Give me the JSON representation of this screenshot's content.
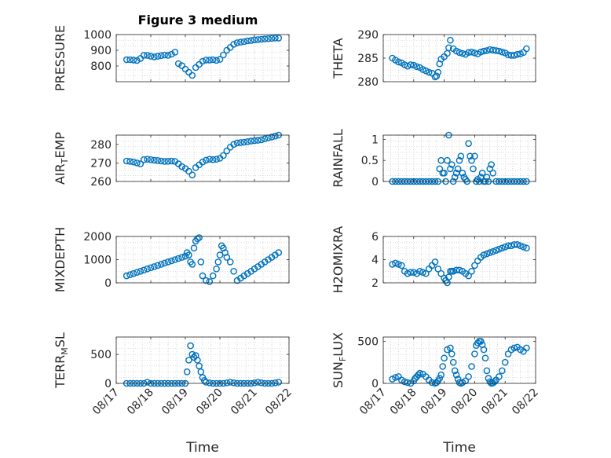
{
  "figure": {
    "title": "Figure 3 medium",
    "marker_color": "#0072BD",
    "xlabel": "Time"
  },
  "chart_data": [
    {
      "type": "scatter",
      "ylabel": "PRESSURE",
      "xlim": [
        0,
        5
      ],
      "ylim": [
        700,
        1000
      ],
      "yticks": [
        800,
        900,
        1000
      ],
      "xticks": [
        "08/17",
        "08/18",
        "08/19",
        "08/20",
        "08/21",
        "08/22"
      ],
      "show_xticklabels": false,
      "grid": true,
      "x": [
        0.3,
        0.4,
        0.5,
        0.6,
        0.7,
        0.8,
        0.9,
        1.0,
        1.1,
        1.2,
        1.3,
        1.4,
        1.5,
        1.6,
        1.7,
        1.8,
        1.9,
        2.0,
        2.1,
        2.2,
        2.3,
        2.4,
        2.5,
        2.6,
        2.7,
        2.8,
        2.9,
        3.0,
        3.1,
        3.2,
        3.3,
        3.4,
        3.5,
        3.6,
        3.7,
        3.8,
        3.9,
        4.0,
        4.1,
        4.2,
        4.3,
        4.4,
        4.5,
        4.6,
        4.7
      ],
      "y": [
        840,
        840,
        838,
        835,
        848,
        868,
        868,
        862,
        858,
        862,
        866,
        870,
        868,
        875,
        888,
        815,
        802,
        780,
        760,
        740,
        790,
        810,
        830,
        838,
        838,
        840,
        836,
        842,
        870,
        900,
        918,
        938,
        948,
        952,
        955,
        960,
        962,
        966,
        968,
        970,
        972,
        974,
        976,
        978,
        978
      ]
    },
    {
      "type": "scatter",
      "ylabel": "THETA",
      "xlim": [
        0,
        5
      ],
      "ylim": [
        280,
        290
      ],
      "yticks": [
        280,
        285,
        290
      ],
      "xticks": [
        "08/17",
        "08/18",
        "08/19",
        "08/20",
        "08/21",
        "08/22"
      ],
      "show_xticklabels": false,
      "grid": true,
      "x": [
        0.3,
        0.4,
        0.5,
        0.6,
        0.7,
        0.8,
        0.9,
        1.0,
        1.1,
        1.2,
        1.3,
        1.4,
        1.5,
        1.6,
        1.7,
        1.75,
        1.8,
        1.85,
        1.9,
        2.0,
        2.1,
        2.15,
        2.2,
        2.3,
        2.4,
        2.5,
        2.6,
        2.7,
        2.8,
        2.9,
        3.0,
        3.1,
        3.2,
        3.3,
        3.4,
        3.5,
        3.6,
        3.7,
        3.8,
        3.9,
        4.0,
        4.1,
        4.2,
        4.3,
        4.4,
        4.5,
        4.6,
        4.7
      ],
      "y": [
        285,
        284.6,
        284.2,
        284.0,
        283.6,
        283.3,
        283.6,
        283.5,
        283.2,
        283.0,
        282.6,
        282.3,
        282.0,
        281.8,
        281.0,
        281.2,
        282.0,
        283.8,
        284.8,
        285.3,
        286.0,
        287.2,
        288.8,
        287.0,
        286.5,
        286.2,
        286.0,
        285.8,
        286.2,
        286.3,
        286.1,
        285.9,
        286.3,
        286.5,
        286.6,
        286.8,
        286.7,
        286.6,
        286.5,
        286.3,
        286.1,
        285.7,
        285.6,
        285.6,
        285.8,
        285.9,
        286.2,
        287.0
      ]
    },
    {
      "type": "scatter",
      "ylabel": "AIR_TEMP",
      "ylabel_display": {
        "main": "AIR",
        "sub": "T",
        "rest": "EMP"
      },
      "xlim": [
        0,
        5
      ],
      "ylim": [
        260,
        285
      ],
      "yticks": [
        260,
        270,
        280
      ],
      "xticks": [
        "08/17",
        "08/18",
        "08/19",
        "08/20",
        "08/21",
        "08/22"
      ],
      "show_xticklabels": false,
      "grid": true,
      "x": [
        0.3,
        0.4,
        0.5,
        0.6,
        0.7,
        0.8,
        0.9,
        1.0,
        1.1,
        1.2,
        1.3,
        1.4,
        1.5,
        1.6,
        1.7,
        1.8,
        1.9,
        2.0,
        2.1,
        2.2,
        2.3,
        2.4,
        2.5,
        2.6,
        2.7,
        2.8,
        2.9,
        3.0,
        3.1,
        3.2,
        3.3,
        3.4,
        3.5,
        3.6,
        3.7,
        3.8,
        3.9,
        4.0,
        4.1,
        4.2,
        4.3,
        4.4,
        4.5,
        4.6,
        4.7
      ],
      "y": [
        271,
        270.8,
        270.5,
        270.0,
        269.5,
        271.8,
        272.0,
        271.8,
        271.5,
        271.3,
        271.0,
        270.8,
        270.9,
        271.0,
        270.8,
        269.5,
        268.0,
        267.0,
        265.5,
        263.5,
        267.5,
        269.0,
        270.5,
        271.5,
        272.0,
        271.8,
        272.0,
        272.5,
        274.0,
        276.5,
        278.5,
        280.0,
        280.8,
        281.0,
        281.2,
        281.5,
        281.8,
        282.0,
        282.2,
        282.5,
        283.0,
        283.5,
        284.0,
        284.5,
        285.0
      ]
    },
    {
      "type": "scatter",
      "ylabel": "RAINFALL",
      "xlim": [
        0,
        5
      ],
      "ylim": [
        0,
        1.1
      ],
      "yticks": [
        0,
        0.5,
        1
      ],
      "yticklabels": [
        "0",
        "0.5",
        "1"
      ],
      "xticks": [
        "08/17",
        "08/18",
        "08/19",
        "08/20",
        "08/21",
        "08/22"
      ],
      "show_xticklabels": false,
      "grid": true,
      "x": [
        0.3,
        0.4,
        0.5,
        0.6,
        0.7,
        0.8,
        0.9,
        1.0,
        1.1,
        1.2,
        1.3,
        1.4,
        1.5,
        1.6,
        1.7,
        1.8,
        1.85,
        1.9,
        1.95,
        2.0,
        2.05,
        2.1,
        2.15,
        2.2,
        2.25,
        2.3,
        2.35,
        2.4,
        2.45,
        2.5,
        2.55,
        2.6,
        2.65,
        2.7,
        2.75,
        2.8,
        2.85,
        2.9,
        2.95,
        3.0,
        3.05,
        3.1,
        3.15,
        3.2,
        3.25,
        3.3,
        3.35,
        3.4,
        3.45,
        3.5,
        3.55,
        3.6,
        3.7,
        3.8,
        3.9,
        4.0,
        4.1,
        4.2,
        4.3,
        4.4,
        4.5,
        4.6,
        4.7
      ],
      "y": [
        0,
        0,
        0,
        0,
        0,
        0,
        0,
        0,
        0,
        0,
        0,
        0,
        0,
        0,
        0,
        0,
        0.3,
        0.5,
        0.2,
        0.2,
        0,
        0.5,
        1.1,
        0.3,
        0.4,
        0,
        0.1,
        0.2,
        0.3,
        0.5,
        0.6,
        0.2,
        0.1,
        0.05,
        0,
        0.9,
        0.6,
        0.5,
        0.3,
        0.6,
        0,
        0.05,
        0,
        0.1,
        0.2,
        0,
        0,
        0.1,
        0,
        0.3,
        0.4,
        0.2,
        0,
        0,
        0,
        0,
        0,
        0,
        0,
        0,
        0,
        0,
        0
      ]
    },
    {
      "type": "scatter",
      "ylabel": "MIXDEPTH",
      "xlim": [
        0,
        5
      ],
      "ylim": [
        0,
        2000
      ],
      "yticks": [
        0,
        1000,
        2000
      ],
      "xticks": [
        "08/17",
        "08/18",
        "08/19",
        "08/20",
        "08/21",
        "08/22"
      ],
      "show_xticklabels": false,
      "grid": true,
      "x": [
        0.3,
        0.4,
        0.5,
        0.6,
        0.7,
        0.8,
        0.9,
        1.0,
        1.1,
        1.2,
        1.3,
        1.4,
        1.5,
        1.6,
        1.7,
        1.8,
        1.9,
        2.0,
        2.05,
        2.1,
        2.15,
        2.2,
        2.25,
        2.3,
        2.35,
        2.4,
        2.45,
        2.5,
        2.6,
        2.7,
        2.8,
        2.9,
        2.95,
        3.0,
        3.05,
        3.1,
        3.15,
        3.2,
        3.3,
        3.4,
        3.5,
        3.6,
        3.7,
        3.8,
        3.9,
        4.0,
        4.1,
        4.2,
        4.3,
        4.4,
        4.5,
        4.6,
        4.7
      ],
      "y": [
        300,
        350,
        400,
        450,
        500,
        550,
        600,
        650,
        700,
        750,
        800,
        850,
        900,
        950,
        1000,
        1050,
        1100,
        1150,
        1300,
        1200,
        900,
        800,
        1500,
        1800,
        1900,
        1950,
        900,
        300,
        100,
        50,
        300,
        600,
        900,
        1200,
        1600,
        1500,
        1300,
        1100,
        900,
        500,
        100,
        200,
        300,
        400,
        500,
        600,
        700,
        800,
        900,
        1000,
        1100,
        1200,
        1300
      ]
    },
    {
      "type": "scatter",
      "ylabel": "H2OMIXRA",
      "xlim": [
        0,
        5
      ],
      "ylim": [
        2,
        6
      ],
      "yticks": [
        2,
        4,
        6
      ],
      "xticks": [
        "08/17",
        "08/18",
        "08/19",
        "08/20",
        "08/21",
        "08/22"
      ],
      "show_xticklabels": false,
      "grid": true,
      "x": [
        0.3,
        0.4,
        0.5,
        0.6,
        0.7,
        0.8,
        0.9,
        1.0,
        1.1,
        1.2,
        1.3,
        1.4,
        1.5,
        1.6,
        1.7,
        1.8,
        1.9,
        2.0,
        2.05,
        2.1,
        2.15,
        2.2,
        2.25,
        2.3,
        2.4,
        2.5,
        2.6,
        2.7,
        2.8,
        2.9,
        3.0,
        3.1,
        3.2,
        3.3,
        3.4,
        3.5,
        3.6,
        3.7,
        3.8,
        3.9,
        4.0,
        4.1,
        4.2,
        4.3,
        4.4,
        4.5,
        4.6,
        4.7
      ],
      "y": [
        3.6,
        3.7,
        3.6,
        3.5,
        3.0,
        2.8,
        2.9,
        2.9,
        2.8,
        3.0,
        2.9,
        2.8,
        3.2,
        3.5,
        3.8,
        3.2,
        2.8,
        2.4,
        2.2,
        2.0,
        2.5,
        3.0,
        3.0,
        3.0,
        3.1,
        3.1,
        3.0,
        2.8,
        2.6,
        3.0,
        3.5,
        3.9,
        4.2,
        4.4,
        4.5,
        4.6,
        4.7,
        4.8,
        4.9,
        5.0,
        5.1,
        5.2,
        5.2,
        5.3,
        5.3,
        5.2,
        5.1,
        5.0
      ]
    },
    {
      "type": "scatter",
      "ylabel": "TERR_MSL",
      "ylabel_display": {
        "main": "TERR",
        "sub": "M",
        "rest": "SL"
      },
      "xlim": [
        0,
        5
      ],
      "ylim": [
        0,
        800
      ],
      "yticks": [
        0,
        500
      ],
      "xticks": [
        "08/17",
        "08/18",
        "08/19",
        "08/20",
        "08/21",
        "08/22"
      ],
      "xticklabels": [
        "08/17",
        "08/18",
        "08/19",
        "08/20",
        "08/21",
        "08/22"
      ],
      "show_xticklabels": true,
      "grid": true,
      "x": [
        0.3,
        0.4,
        0.5,
        0.6,
        0.7,
        0.8,
        0.9,
        1.0,
        1.1,
        1.2,
        1.3,
        1.4,
        1.5,
        1.6,
        1.7,
        1.8,
        1.9,
        2.0,
        2.05,
        2.1,
        2.15,
        2.2,
        2.25,
        2.3,
        2.35,
        2.4,
        2.45,
        2.5,
        2.55,
        2.6,
        2.7,
        2.8,
        2.9,
        3.0,
        3.1,
        3.2,
        3.3,
        3.4,
        3.5,
        3.6,
        3.7,
        3.8,
        3.9,
        4.0,
        4.1,
        4.2,
        4.3,
        4.4,
        4.5,
        4.6,
        4.7
      ],
      "y": [
        0,
        0,
        0,
        0,
        0,
        0,
        20,
        0,
        0,
        0,
        0,
        0,
        0,
        0,
        0,
        0,
        0,
        0,
        200,
        400,
        650,
        500,
        450,
        480,
        400,
        300,
        200,
        100,
        50,
        20,
        10,
        0,
        0,
        0,
        0,
        10,
        20,
        10,
        0,
        0,
        0,
        0,
        0,
        10,
        20,
        10,
        0,
        0,
        0,
        10,
        20
      ]
    },
    {
      "type": "scatter",
      "ylabel": "SUN_FLUX",
      "ylabel_display": {
        "main": "SUN",
        "sub": "F",
        "rest": "LUX"
      },
      "xlim": [
        0,
        5
      ],
      "ylim": [
        0,
        550
      ],
      "yticks": [
        0,
        500
      ],
      "xticks": [
        "08/17",
        "08/18",
        "08/19",
        "08/20",
        "08/21",
        "08/22"
      ],
      "xticklabels": [
        "08/17",
        "08/18",
        "08/19",
        "08/20",
        "08/21",
        "08/22"
      ],
      "show_xticklabels": true,
      "grid": true,
      "x": [
        0.3,
        0.4,
        0.5,
        0.6,
        0.7,
        0.8,
        0.9,
        1.0,
        1.05,
        1.1,
        1.15,
        1.2,
        1.3,
        1.4,
        1.5,
        1.6,
        1.7,
        1.75,
        1.8,
        1.85,
        1.9,
        1.95,
        2.0,
        2.1,
        2.2,
        2.25,
        2.3,
        2.35,
        2.4,
        2.45,
        2.5,
        2.55,
        2.6,
        2.7,
        2.8,
        2.9,
        3.0,
        3.05,
        3.1,
        3.15,
        3.2,
        3.25,
        3.3,
        3.35,
        3.4,
        3.45,
        3.5,
        3.55,
        3.6,
        3.65,
        3.7,
        3.8,
        3.9,
        4.0,
        4.1,
        4.2,
        4.3,
        4.4,
        4.5,
        4.6,
        4.7
      ],
      "y": [
        50,
        70,
        80,
        40,
        20,
        10,
        0,
        30,
        60,
        80,
        100,
        120,
        110,
        80,
        40,
        10,
        0,
        10,
        30,
        60,
        100,
        200,
        300,
        400,
        420,
        350,
        250,
        150,
        100,
        50,
        10,
        0,
        10,
        30,
        80,
        200,
        350,
        450,
        480,
        500,
        500,
        460,
        400,
        300,
        150,
        60,
        20,
        0,
        5,
        20,
        40,
        80,
        150,
        250,
        350,
        400,
        420,
        430,
        400,
        380,
        420
      ]
    }
  ]
}
